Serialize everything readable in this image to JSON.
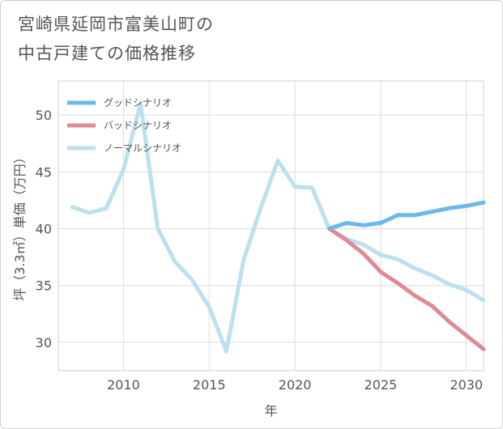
{
  "title_lines": [
    "宮崎県延岡市富美山町の",
    "中古戸建ての価格推移"
  ],
  "chart_data": {
    "type": "line",
    "title": "宮崎県延岡市富美山町の中古戸建ての価格推移",
    "xlabel": "年",
    "ylabel": "坪（3.3㎡）単価（万円）",
    "xlim": [
      2006.2,
      2031
    ],
    "ylim": [
      27.5,
      53
    ],
    "xticks": [
      2010,
      2015,
      2020,
      2025,
      2030
    ],
    "yticks": [
      30,
      35,
      40,
      45,
      50
    ],
    "grid": true,
    "legend_position": "top-left",
    "series": [
      {
        "name": "グッドシナリオ",
        "color": "#6cb8ec",
        "x": [
          2022,
          2023,
          2024,
          2025,
          2026,
          2027,
          2028,
          2029,
          2030,
          2031
        ],
        "values": [
          40.0,
          40.5,
          40.3,
          40.5,
          41.2,
          41.2,
          41.5,
          41.8,
          42.0,
          42.3
        ]
      },
      {
        "name": "バッドシナリオ",
        "color": "#dc8c92",
        "x": [
          2022,
          2023,
          2024,
          2025,
          2026,
          2027,
          2028,
          2029,
          2030,
          2031
        ],
        "values": [
          40.0,
          39.0,
          37.8,
          36.2,
          35.2,
          34.1,
          33.2,
          31.8,
          30.6,
          29.4
        ]
      },
      {
        "name": "ノーマルシナリオ",
        "color": "#bde0ee",
        "x": [
          2007,
          2008,
          2009,
          2010,
          2011,
          2012,
          2013,
          2014,
          2015,
          2016,
          2017,
          2018,
          2019,
          2020,
          2021,
          2022,
          2023,
          2024,
          2025,
          2026,
          2027,
          2028,
          2029,
          2030,
          2031
        ],
        "values": [
          41.9,
          41.4,
          41.8,
          45.2,
          51.0,
          40.0,
          37.1,
          35.5,
          33.1,
          29.2,
          37.2,
          41.8,
          46.0,
          43.7,
          43.6,
          40.0,
          39.1,
          38.6,
          37.7,
          37.3,
          36.5,
          35.9,
          35.1,
          34.6,
          33.7
        ]
      }
    ]
  }
}
